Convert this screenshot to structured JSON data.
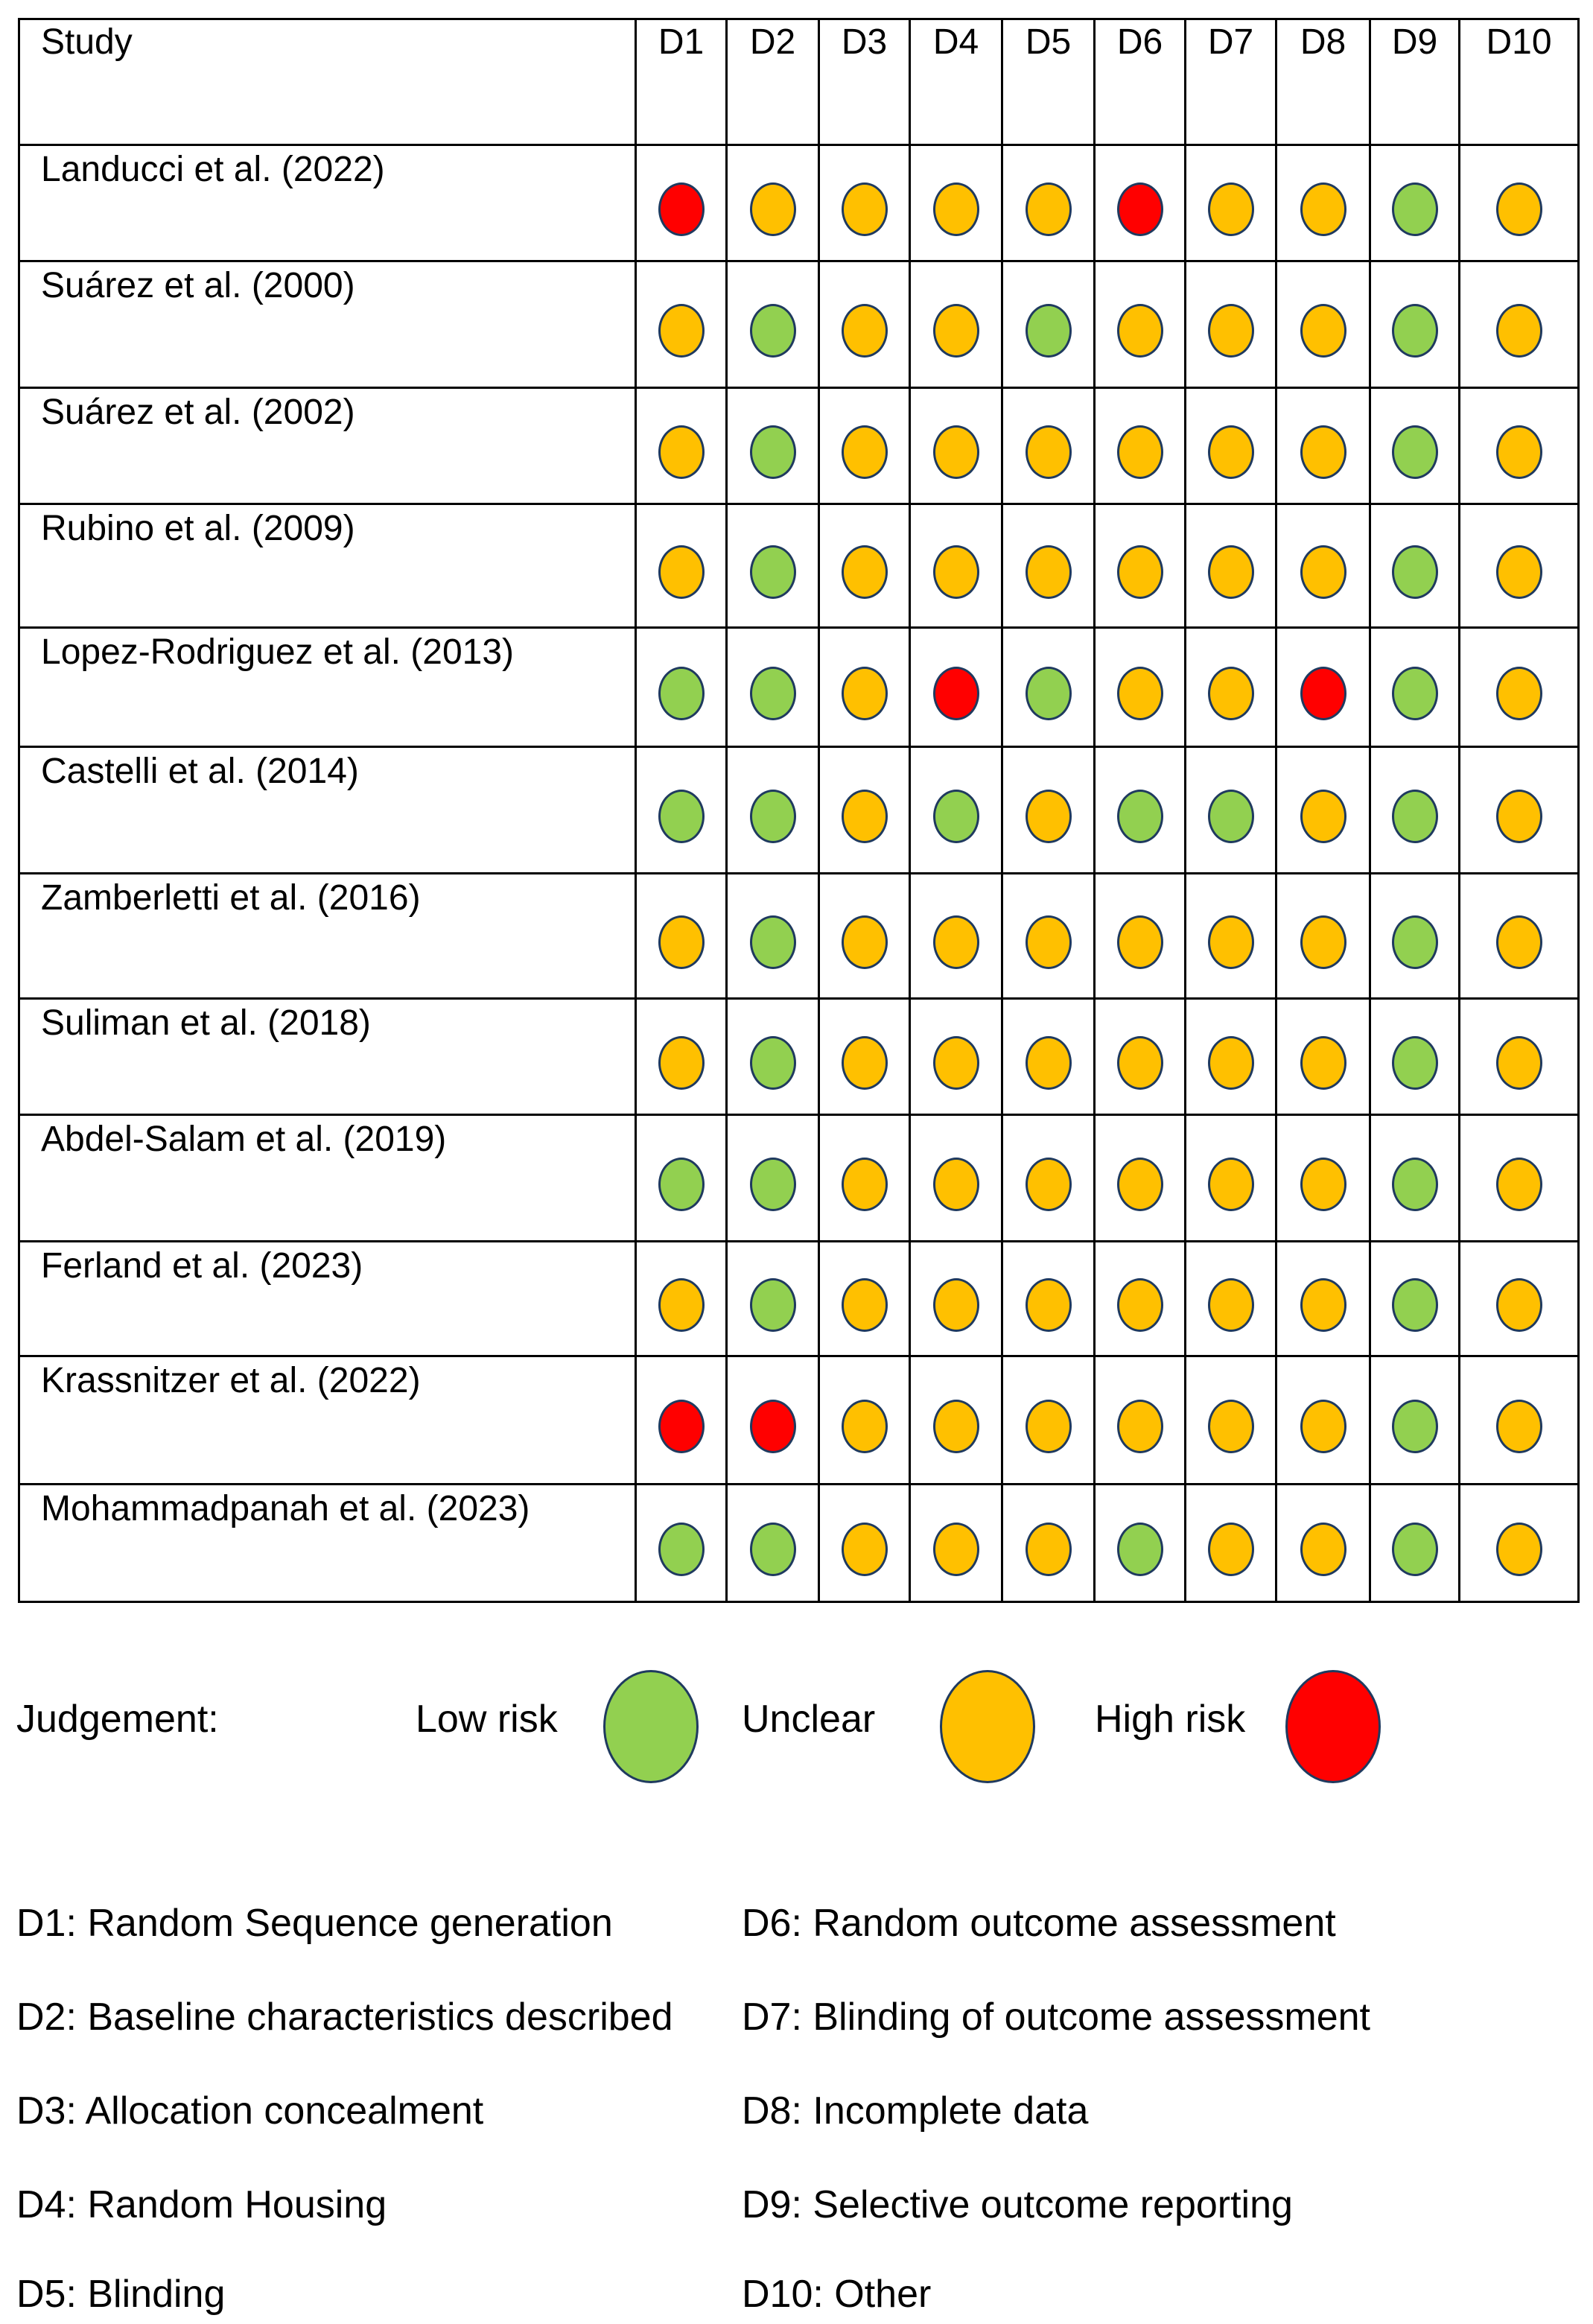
{
  "chart_data": {
    "type": "table",
    "header": {
      "study_label": "Study",
      "domains": [
        "D1",
        "D2",
        "D3",
        "D4",
        "D5",
        "D6",
        "D7",
        "D8",
        "D9",
        "D10"
      ]
    },
    "rows": [
      {
        "study": "Landucci et al. (2022)",
        "judgements": [
          "high",
          "unclear",
          "unclear",
          "unclear",
          "unclear",
          "high",
          "unclear",
          "unclear",
          "low",
          "unclear"
        ]
      },
      {
        "study": "Suárez et al. (2000)",
        "judgements": [
          "unclear",
          "low",
          "unclear",
          "unclear",
          "low",
          "unclear",
          "unclear",
          "unclear",
          "low",
          "unclear"
        ]
      },
      {
        "study": "Suárez et al. (2002)",
        "judgements": [
          "unclear",
          "low",
          "unclear",
          "unclear",
          "unclear",
          "unclear",
          "unclear",
          "unclear",
          "low",
          "unclear"
        ]
      },
      {
        "study": "Rubino et al. (2009)",
        "judgements": [
          "unclear",
          "low",
          "unclear",
          "unclear",
          "unclear",
          "unclear",
          "unclear",
          "unclear",
          "low",
          "unclear"
        ]
      },
      {
        "study": "Lopez-Rodriguez et al. (2013)",
        "judgements": [
          "low",
          "low",
          "unclear",
          "high",
          "low",
          "unclear",
          "unclear",
          "high",
          "low",
          "unclear"
        ]
      },
      {
        "study": "Castelli et al. (2014)",
        "judgements": [
          "low",
          "low",
          "unclear",
          "low",
          "unclear",
          "low",
          "low",
          "unclear",
          "low",
          "unclear"
        ]
      },
      {
        "study": "Zamberletti et al. (2016)",
        "judgements": [
          "unclear",
          "low",
          "unclear",
          "unclear",
          "unclear",
          "unclear",
          "unclear",
          "unclear",
          "low",
          "unclear"
        ]
      },
      {
        "study": "Suliman et al. (2018)",
        "judgements": [
          "unclear",
          "low",
          "unclear",
          "unclear",
          "unclear",
          "unclear",
          "unclear",
          "unclear",
          "low",
          "unclear"
        ]
      },
      {
        "study": "Abdel-Salam et al. (2019)",
        "judgements": [
          "low",
          "low",
          "unclear",
          "unclear",
          "unclear",
          "unclear",
          "unclear",
          "unclear",
          "low",
          "unclear"
        ]
      },
      {
        "study": "Ferland et al. (2023)",
        "judgements": [
          "unclear",
          "low",
          "unclear",
          "unclear",
          "unclear",
          "unclear",
          "unclear",
          "unclear",
          "low",
          "unclear"
        ]
      },
      {
        "study": "Krassnitzer et al. (2022)",
        "judgements": [
          "high",
          "high",
          "unclear",
          "unclear",
          "unclear",
          "unclear",
          "unclear",
          "unclear",
          "low",
          "unclear"
        ]
      },
      {
        "study": "Mohammadpanah et al. (2023)",
        "judgements": [
          "low",
          "low",
          "unclear",
          "unclear",
          "unclear",
          "low",
          "unclear",
          "unclear",
          "low",
          "unclear"
        ]
      }
    ],
    "legend": {
      "title": "Judgement:",
      "items": [
        {
          "key": "low",
          "label": "Low risk",
          "color": "#92d050"
        },
        {
          "key": "unclear",
          "label": "Unclear",
          "color": "#ffc000"
        },
        {
          "key": "high",
          "label": "High risk",
          "color": "#ff0000"
        }
      ]
    },
    "domain_definitions": [
      "D1: Random Sequence generation",
      "D2: Baseline characteristics described",
      "D3: Allocation concealment",
      "D4: Random Housing",
      "D5: Blinding",
      "D6: Random outcome assessment",
      "D7: Blinding of outcome assessment",
      "D8: Incomplete data",
      "D9: Selective outcome reporting",
      "D10: Other"
    ]
  }
}
